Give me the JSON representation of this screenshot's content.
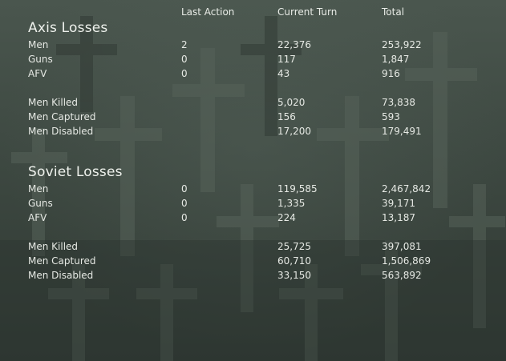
{
  "columns": {
    "last_action": "Last Action",
    "current_turn": "Current Turn",
    "total": "Total"
  },
  "axis": {
    "title": "Axis Losses",
    "rows": [
      {
        "label": "Men",
        "last": "2",
        "turn": "22,376",
        "total": "253,922"
      },
      {
        "label": "Guns",
        "last": "0",
        "turn": "117",
        "total": "1,847"
      },
      {
        "label": "AFV",
        "last": "0",
        "turn": "43",
        "total": "916"
      },
      {
        "label": "Men Killed",
        "last": "",
        "turn": "5,020",
        "total": "73,838"
      },
      {
        "label": "Men Captured",
        "last": "",
        "turn": "156",
        "total": "593"
      },
      {
        "label": "Men Disabled",
        "last": "",
        "turn": "17,200",
        "total": "179,491"
      }
    ]
  },
  "soviet": {
    "title": "Soviet Losses",
    "rows": [
      {
        "label": "Men",
        "last": "0",
        "turn": "119,585",
        "total": "2,467,842"
      },
      {
        "label": "Guns",
        "last": "0",
        "turn": "1,335",
        "total": "39,171"
      },
      {
        "label": "AFV",
        "last": "0",
        "turn": "224",
        "total": "13,187"
      },
      {
        "label": "Men Killed",
        "last": "",
        "turn": "25,725",
        "total": "397,081"
      },
      {
        "label": "Men Captured",
        "last": "",
        "turn": "60,710",
        "total": "1,506,869"
      },
      {
        "label": "Men Disabled",
        "last": "",
        "turn": "33,150",
        "total": "563,892"
      }
    ]
  }
}
